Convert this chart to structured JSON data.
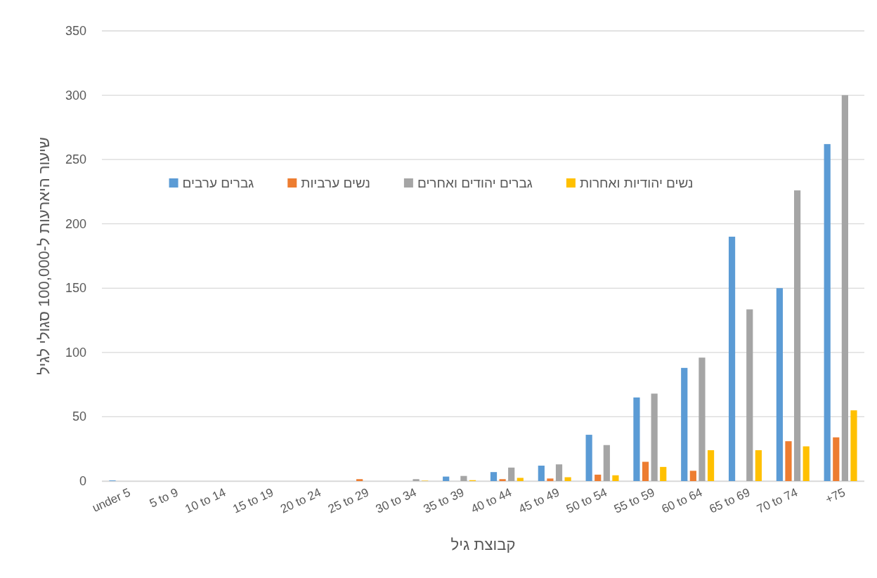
{
  "chart_data": {
    "type": "bar",
    "xlabel": "קבוצת גיל",
    "ylabel": "שיעור היארעות ל-100,000 סגולי לגיל",
    "categories": [
      "under 5",
      "5 to 9",
      "10 to 14",
      "15 to 19",
      "20 to 24",
      "25 to 29",
      "30 to 34",
      "35 to 39",
      "40 to 44",
      "45 to 49",
      "50 to 54",
      "55 to 59",
      "60 to 64",
      "65 to 69",
      "70 to 74",
      "+75"
    ],
    "series": [
      {
        "name": "גברים ערבים",
        "color": "#5b9bd5",
        "values": [
          0.5,
          0,
          0,
          0,
          0,
          0,
          0,
          3.5,
          7,
          12,
          36,
          65,
          88,
          190,
          150,
          262
        ]
      },
      {
        "name": "נשים ערביות",
        "color": "#ed7d31",
        "values": [
          0,
          0,
          0,
          0,
          0,
          1.5,
          0,
          0,
          1.5,
          2,
          5,
          15,
          8,
          0,
          31,
          34
        ]
      },
      {
        "name": "גברים יהודים ואחרים",
        "color": "#a5a5a5",
        "values": [
          0,
          0,
          0,
          0,
          0,
          0,
          1.5,
          4,
          10.5,
          13,
          28,
          68,
          96,
          133.5,
          226,
          300
        ]
      },
      {
        "name": "נשים יהודיות ואחרות",
        "color": "#ffc000",
        "values": [
          0,
          0,
          0,
          0,
          0,
          0,
          0.3,
          0.7,
          2.5,
          3,
          4.5,
          11,
          24,
          24,
          27,
          55
        ]
      }
    ],
    "ylim": [
      0,
      350
    ],
    "yticks": [
      0,
      50,
      100,
      150,
      200,
      250,
      300,
      350
    ],
    "grid": "y",
    "legend": "top"
  }
}
